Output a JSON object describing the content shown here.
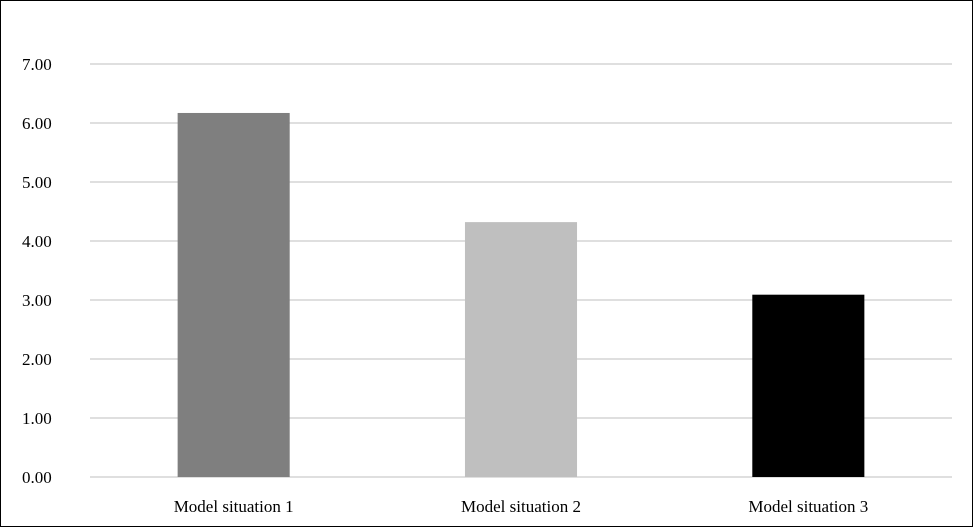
{
  "chart_data": {
    "type": "bar",
    "categories": [
      "Model situation 1",
      "Model situation 2",
      "Model situation 3"
    ],
    "values": [
      6.17,
      4.32,
      3.09
    ],
    "bar_colors": [
      "#7f7f7f",
      "#bfbfbf",
      "#000000"
    ],
    "title": "",
    "xlabel": "",
    "ylabel": "",
    "ylim": [
      0,
      7
    ],
    "yticks": [
      "0.00",
      "1.00",
      "2.00",
      "3.00",
      "4.00",
      "5.00",
      "6.00",
      "7.00"
    ],
    "grid": true,
    "grid_color": "#bfbfbf",
    "legend": "none"
  }
}
